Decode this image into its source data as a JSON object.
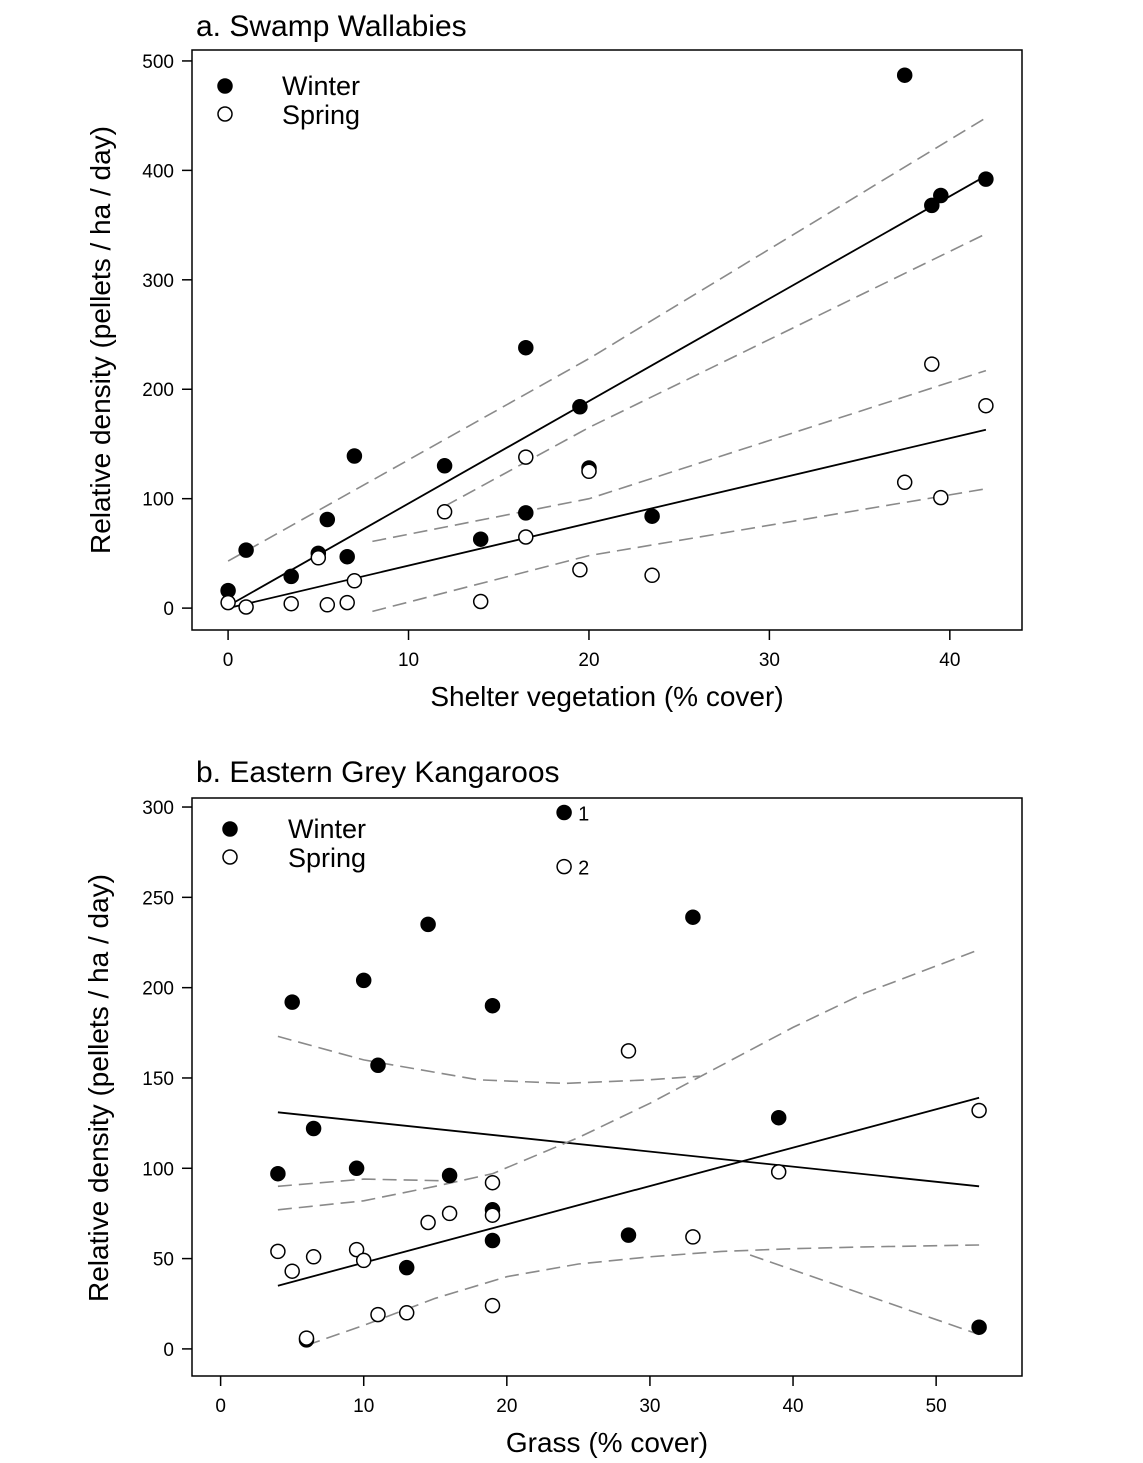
{
  "chart_data": [
    {
      "type": "scatter",
      "title": "a. Swamp Wallabies",
      "xlabel": "Shelter vegetation (% cover)",
      "ylabel": "Relative density (pellets / ha / day)",
      "xlim": [
        -2,
        44
      ],
      "ylim": [
        -20,
        510
      ],
      "xticks": [
        0,
        10,
        20,
        30,
        40
      ],
      "yticks": [
        0,
        100,
        200,
        300,
        400,
        500
      ],
      "legend_position": "top-left",
      "grid": false,
      "series": [
        {
          "name": "Winter",
          "marker": "filled-circle",
          "points": [
            [
              0,
              16
            ],
            [
              1,
              53
            ],
            [
              3.5,
              29
            ],
            [
              5,
              50
            ],
            [
              5.5,
              81
            ],
            [
              6.6,
              47
            ],
            [
              7,
              139
            ],
            [
              12,
              130
            ],
            [
              14,
              63
            ],
            [
              16.5,
              87
            ],
            [
              16.5,
              238
            ],
            [
              19.5,
              184
            ],
            [
              20,
              128
            ],
            [
              23.5,
              84
            ],
            [
              37.5,
              487
            ],
            [
              39,
              368
            ],
            [
              39.5,
              377
            ],
            [
              42,
              392
            ]
          ],
          "fit": [
            [
              0,
              2
            ],
            [
              42,
              395
            ]
          ],
          "ci_upper": [
            [
              0,
              43
            ],
            [
              20,
              228
            ],
            [
              42,
              448
            ]
          ],
          "ci_lower": [
            [
              12,
              93
            ],
            [
              20,
              165
            ],
            [
              42,
              342
            ]
          ]
        },
        {
          "name": "Spring",
          "marker": "open-circle",
          "points": [
            [
              0,
              5
            ],
            [
              1,
              1
            ],
            [
              3.5,
              4
            ],
            [
              5,
              46
            ],
            [
              5.5,
              3
            ],
            [
              6.6,
              5
            ],
            [
              7,
              25
            ],
            [
              12,
              88
            ],
            [
              14,
              6
            ],
            [
              16.5,
              65
            ],
            [
              16.5,
              138
            ],
            [
              19.5,
              35
            ],
            [
              20,
              125
            ],
            [
              23.5,
              30
            ],
            [
              37.5,
              115
            ],
            [
              39,
              223
            ],
            [
              39.5,
              101
            ],
            [
              42,
              185
            ]
          ],
          "fit": [
            [
              0,
              0
            ],
            [
              42,
              163
            ]
          ],
          "ci_upper": [
            [
              8,
              61
            ],
            [
              20,
              100
            ],
            [
              42,
              217
            ]
          ],
          "ci_lower": [
            [
              8,
              -3
            ],
            [
              20,
              48
            ],
            [
              42,
              109
            ]
          ]
        }
      ]
    },
    {
      "type": "scatter",
      "title": "b. Eastern Grey Kangaroos",
      "xlabel": "Grass (% cover)",
      "ylabel": "Relative density (pellets / ha / day)",
      "xlim": [
        -2,
        56
      ],
      "ylim": [
        -15,
        305
      ],
      "xticks": [
        0,
        10,
        20,
        30,
        40,
        50
      ],
      "yticks": [
        0,
        50,
        100,
        150,
        200,
        250,
        300
      ],
      "legend_position": "top-left",
      "grid": false,
      "annotations": [
        {
          "label": "1",
          "marker": "filled-circle",
          "x": 24,
          "y": 297
        },
        {
          "label": "2",
          "marker": "open-circle",
          "x": 24,
          "y": 267
        }
      ],
      "series": [
        {
          "name": "Winter",
          "marker": "filled-circle",
          "points": [
            [
              4,
              97
            ],
            [
              5,
              192
            ],
            [
              6,
              5
            ],
            [
              6.5,
              122
            ],
            [
              9.5,
              100
            ],
            [
              10,
              204
            ],
            [
              11,
              157
            ],
            [
              13,
              45
            ],
            [
              14.5,
              235
            ],
            [
              16,
              96
            ],
            [
              19,
              190
            ],
            [
              19,
              77
            ],
            [
              19,
              60
            ],
            [
              28.5,
              63
            ],
            [
              33,
              239
            ],
            [
              39,
              128
            ],
            [
              53,
              12
            ]
          ],
          "fit": [
            [
              4,
              131
            ],
            [
              53,
              90
            ]
          ],
          "ci_upper": [
            [
              4,
              173
            ],
            [
              10,
              160
            ],
            [
              18,
              149
            ],
            [
              24,
              147
            ],
            [
              30,
              149
            ],
            [
              33.5,
              151
            ]
          ],
          "ci_lower": [
            [
              4,
              90
            ],
            [
              10,
              94
            ],
            [
              16,
              93
            ]
          ],
          "ci_lower_2": [
            [
              37,
              52
            ],
            [
              45,
              30
            ],
            [
              53,
              8
            ]
          ]
        },
        {
          "name": "Spring",
          "marker": "open-circle",
          "points": [
            [
              4,
              54
            ],
            [
              5,
              43
            ],
            [
              6,
              6
            ],
            [
              6.5,
              51
            ],
            [
              9.5,
              55
            ],
            [
              10,
              49
            ],
            [
              11,
              19
            ],
            [
              13,
              20
            ],
            [
              14.5,
              70
            ],
            [
              16,
              75
            ],
            [
              19,
              92
            ],
            [
              19,
              74
            ],
            [
              19,
              24
            ],
            [
              28.5,
              165
            ],
            [
              33,
              62
            ],
            [
              39,
              98
            ],
            [
              53,
              132
            ]
          ],
          "fit": [
            [
              4,
              35
            ],
            [
              53,
              139
            ]
          ],
          "ci_upper": [
            [
              4,
              77
            ],
            [
              10,
              82
            ],
            [
              15,
              90
            ],
            [
              19,
              97
            ],
            [
              25,
              117
            ],
            [
              30,
              136
            ],
            [
              35,
              157
            ],
            [
              40,
              178
            ],
            [
              45,
              197
            ],
            [
              53,
              221
            ]
          ],
          "ci_lower": [
            [
              6,
              2
            ],
            [
              10,
              13
            ],
            [
              15,
              28
            ],
            [
              20,
              40
            ],
            [
              25,
              47
            ],
            [
              30,
              51
            ],
            [
              35,
              54
            ],
            [
              40,
              55.5
            ],
            [
              45,
              56.5
            ],
            [
              53,
              57.5
            ]
          ]
        }
      ]
    }
  ]
}
